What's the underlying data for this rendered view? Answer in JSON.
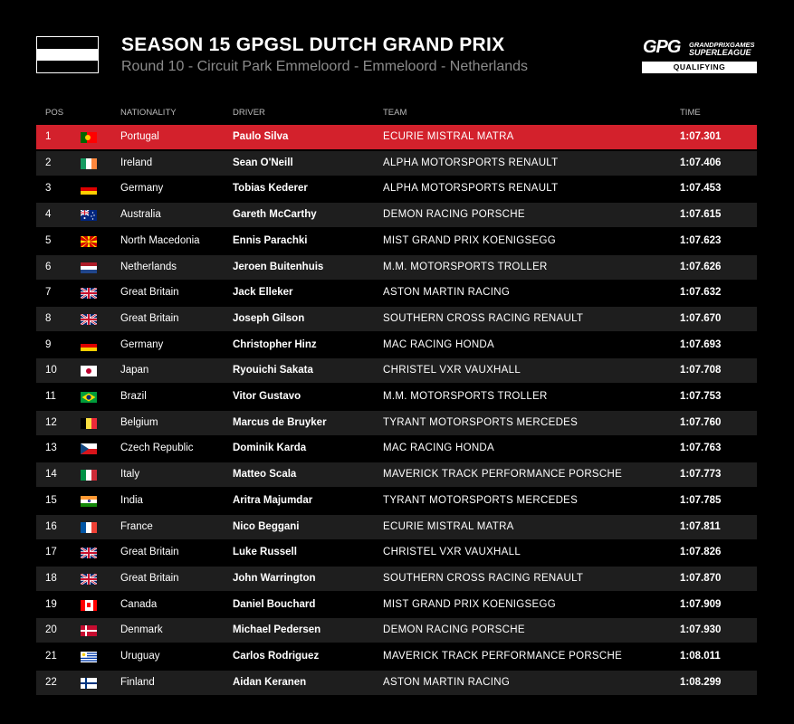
{
  "header": {
    "title": "SEASON 15 GPGSL DUTCH GRAND PRIX",
    "subtitle": "Round 10 - Circuit Park Emmeloord - Emmeloord - Netherlands",
    "flag_icon": "flag-black-white-black-icon"
  },
  "logo": {
    "mark": "GPG",
    "line1": "GRANDPRIXGAMES",
    "line2": "SUPERLEAGUE",
    "session": "QUALIFYING"
  },
  "columns": {
    "pos": "POS",
    "nationality": "NATIONALITY",
    "driver": "DRIVER",
    "team": "TEAM",
    "time": "TIME"
  },
  "colors": {
    "background": "#000000",
    "pole_row": "#d3212c",
    "alt_row": "#1e1e1e",
    "subtitle": "#8c8c8c"
  },
  "rows": [
    {
      "pos": "1",
      "nationality": "Portugal",
      "flag": "portugal-flag-icon",
      "driver": "Paulo Silva",
      "team": "ECURIE MISTRAL MATRA",
      "time": "1:07.301"
    },
    {
      "pos": "2",
      "nationality": "Ireland",
      "flag": "ireland-flag-icon",
      "driver": "Sean O'Neill",
      "team": "ALPHA MOTORSPORTS RENAULT",
      "time": "1:07.406"
    },
    {
      "pos": "3",
      "nationality": "Germany",
      "flag": "germany-flag-icon",
      "driver": "Tobias Kederer",
      "team": "ALPHA MOTORSPORTS RENAULT",
      "time": "1:07.453"
    },
    {
      "pos": "4",
      "nationality": "Australia",
      "flag": "australia-flag-icon",
      "driver": "Gareth McCarthy",
      "team": "DEMON RACING PORSCHE",
      "time": "1:07.615"
    },
    {
      "pos": "5",
      "nationality": "North Macedonia",
      "flag": "north-macedonia-flag-icon",
      "driver": "Ennis Parachki",
      "team": "MIST GRAND PRIX KOENIGSEGG",
      "time": "1:07.623"
    },
    {
      "pos": "6",
      "nationality": "Netherlands",
      "flag": "netherlands-flag-icon",
      "driver": "Jeroen Buitenhuis",
      "team": "M.M. MOTORSPORTS TROLLER",
      "time": "1:07.626"
    },
    {
      "pos": "7",
      "nationality": "Great Britain",
      "flag": "great-britain-flag-icon",
      "driver": "Jack Elleker",
      "team": "ASTON MARTIN RACING",
      "time": "1:07.632"
    },
    {
      "pos": "8",
      "nationality": "Great Britain",
      "flag": "great-britain-flag-icon",
      "driver": "Joseph Gilson",
      "team": "SOUTHERN CROSS RACING RENAULT",
      "time": "1:07.670"
    },
    {
      "pos": "9",
      "nationality": "Germany",
      "flag": "germany-flag-icon",
      "driver": "Christopher Hinz",
      "team": "MAC RACING HONDA",
      "time": "1:07.693"
    },
    {
      "pos": "10",
      "nationality": "Japan",
      "flag": "japan-flag-icon",
      "driver": "Ryouichi Sakata",
      "team": "CHRISTEL VXR VAUXHALL",
      "time": "1:07.708"
    },
    {
      "pos": "11",
      "nationality": "Brazil",
      "flag": "brazil-flag-icon",
      "driver": "Vitor Gustavo",
      "team": "M.M. MOTORSPORTS TROLLER",
      "time": "1:07.753"
    },
    {
      "pos": "12",
      "nationality": "Belgium",
      "flag": "belgium-flag-icon",
      "driver": "Marcus de Bruyker",
      "team": "TYRANT MOTORSPORTS MERCEDES",
      "time": "1:07.760"
    },
    {
      "pos": "13",
      "nationality": "Czech Republic",
      "flag": "czech-republic-flag-icon",
      "driver": "Dominik Karda",
      "team": "MAC RACING HONDA",
      "time": "1:07.763"
    },
    {
      "pos": "14",
      "nationality": "Italy",
      "flag": "italy-flag-icon",
      "driver": "Matteo Scala",
      "team": "MAVERICK TRACK PERFORMANCE PORSCHE",
      "time": "1:07.773"
    },
    {
      "pos": "15",
      "nationality": "India",
      "flag": "india-flag-icon",
      "driver": "Aritra Majumdar",
      "team": "TYRANT MOTORSPORTS MERCEDES",
      "time": "1:07.785"
    },
    {
      "pos": "16",
      "nationality": "France",
      "flag": "france-flag-icon",
      "driver": "Nico Beggani",
      "team": "ECURIE MISTRAL MATRA",
      "time": "1:07.811"
    },
    {
      "pos": "17",
      "nationality": "Great Britain",
      "flag": "great-britain-flag-icon",
      "driver": "Luke Russell",
      "team": "CHRISTEL VXR VAUXHALL",
      "time": "1:07.826"
    },
    {
      "pos": "18",
      "nationality": "Great Britain",
      "flag": "great-britain-flag-icon",
      "driver": "John Warrington",
      "team": "SOUTHERN CROSS RACING RENAULT",
      "time": "1:07.870"
    },
    {
      "pos": "19",
      "nationality": "Canada",
      "flag": "canada-flag-icon",
      "driver": "Daniel Bouchard",
      "team": "MIST GRAND PRIX KOENIGSEGG",
      "time": "1:07.909"
    },
    {
      "pos": "20",
      "nationality": "Denmark",
      "flag": "denmark-flag-icon",
      "driver": "Michael Pedersen",
      "team": "DEMON RACING PORSCHE",
      "time": "1:07.930"
    },
    {
      "pos": "21",
      "nationality": "Uruguay",
      "flag": "uruguay-flag-icon",
      "driver": "Carlos Rodriguez",
      "team": "MAVERICK TRACK PERFORMANCE PORSCHE",
      "time": "1:08.011"
    },
    {
      "pos": "22",
      "nationality": "Finland",
      "flag": "finland-flag-icon",
      "driver": "Aidan Keranen",
      "team": "ASTON MARTIN RACING",
      "time": "1:08.299"
    }
  ]
}
